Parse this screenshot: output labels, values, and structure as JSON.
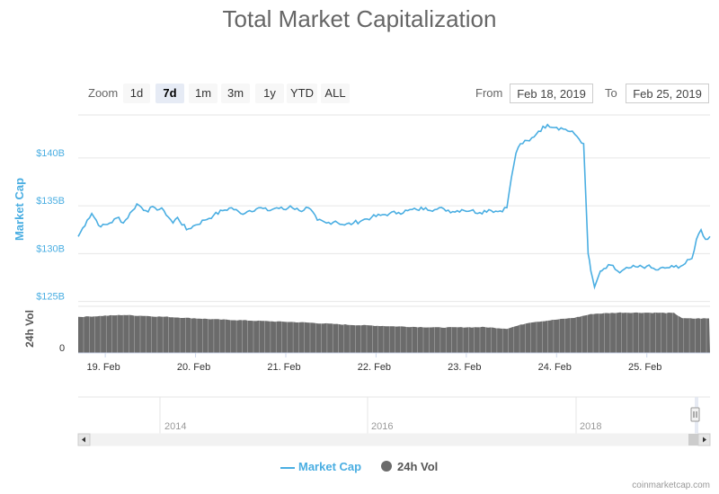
{
  "title": "Total Market Capitalization",
  "zoom": {
    "label": "Zoom",
    "buttons": [
      "1d",
      "7d",
      "1m",
      "3m",
      "1y",
      "YTD",
      "ALL"
    ],
    "active": "7d"
  },
  "range": {
    "from_label": "From",
    "from_value": "Feb 18, 2019",
    "to_label": "To",
    "to_value": "Feb 25, 2019"
  },
  "chart_data": {
    "type": "line",
    "x_unit": "days (Feb 2019)",
    "x_range": [
      18.7,
      25.7
    ],
    "x_tick_labels": [
      "19. Feb",
      "20. Feb",
      "21. Feb",
      "22. Feb",
      "23. Feb",
      "24. Feb",
      "25. Feb"
    ],
    "market_cap": {
      "name": "Market Cap",
      "ylabel": "Market Cap",
      "unit": "billion USD",
      "y_tick_labels": [
        "$125B",
        "$130B",
        "$135B",
        "$140B"
      ],
      "x": [
        18.7,
        18.8,
        18.85,
        18.95,
        19.05,
        19.15,
        19.2,
        19.3,
        19.35,
        19.45,
        19.55,
        19.65,
        19.75,
        19.8,
        19.9,
        20.0,
        20.1,
        20.2,
        20.3,
        20.4,
        20.5,
        20.6,
        20.7,
        20.8,
        20.9,
        21.0,
        21.05,
        21.15,
        21.25,
        21.35,
        21.45,
        21.55,
        21.65,
        21.75,
        21.85,
        21.95,
        22.05,
        22.15,
        22.25,
        22.35,
        22.45,
        22.55,
        22.65,
        22.75,
        22.85,
        22.95,
        23.05,
        23.15,
        23.25,
        23.35,
        23.45,
        23.5,
        23.55,
        23.6,
        23.7,
        23.8,
        23.9,
        24.0,
        24.1,
        24.2,
        24.3,
        24.35,
        24.38,
        24.42,
        24.47,
        24.5,
        24.6,
        24.7,
        24.8,
        24.9,
        25.0,
        25.1,
        25.2,
        25.3,
        25.4,
        25.5,
        25.55,
        25.6,
        25.65,
        25.7
      ],
      "y": [
        131.8,
        133.5,
        134.2,
        132.8,
        133.2,
        133.8,
        133.2,
        134.5,
        135.2,
        134.5,
        134.8,
        134.5,
        133.2,
        133.8,
        132.5,
        133.0,
        133.5,
        134.0,
        134.5,
        134.8,
        134.2,
        134.5,
        134.8,
        134.5,
        134.8,
        134.6,
        135.0,
        134.5,
        134.8,
        133.5,
        133.2,
        133.4,
        133.0,
        133.2,
        133.5,
        133.8,
        134.0,
        134.2,
        134.3,
        134.5,
        134.6,
        134.8,
        134.6,
        134.7,
        134.4,
        134.6,
        134.5,
        134.3,
        134.6,
        134.4,
        134.8,
        138.0,
        140.5,
        141.5,
        141.8,
        142.8,
        143.5,
        143.2,
        143.0,
        142.5,
        141.5,
        130.0,
        128.2,
        126.5,
        127.8,
        128.2,
        128.8,
        128.0,
        128.5,
        128.6,
        128.7,
        128.3,
        128.5,
        128.6,
        128.8,
        129.5,
        131.5,
        132.5,
        131.5,
        131.8
      ],
      "ylim": [
        124.5,
        144.5
      ]
    },
    "volume": {
      "name": "24h Vol",
      "ylabel": "24h Vol",
      "y_tick_labels": [
        "0"
      ],
      "x": [
        18.7,
        19.2,
        19.7,
        20.2,
        20.7,
        21.2,
        21.7,
        22.2,
        22.7,
        23.2,
        23.45,
        23.7,
        24.2,
        24.4,
        24.7,
        25.0,
        25.3,
        25.4,
        25.7
      ],
      "y": [
        0.92,
        0.97,
        0.92,
        0.86,
        0.82,
        0.78,
        0.72,
        0.68,
        0.65,
        0.66,
        0.62,
        0.78,
        0.9,
        1.0,
        1.03,
        1.03,
        1.02,
        0.88,
        0.88
      ],
      "ylim": [
        0,
        1.1
      ]
    },
    "navigator": {
      "tick_labels": [
        "2014",
        "2016",
        "2018"
      ]
    },
    "legend": {
      "placement": "bottom-center",
      "items": [
        "Market Cap",
        "24h Vol"
      ]
    },
    "colors": {
      "market_cap": "#4aaee2",
      "volume": "#6b6b6b",
      "axis_label": "#4aaee2"
    },
    "grid": true
  },
  "credits": "coinmarketcap.com"
}
